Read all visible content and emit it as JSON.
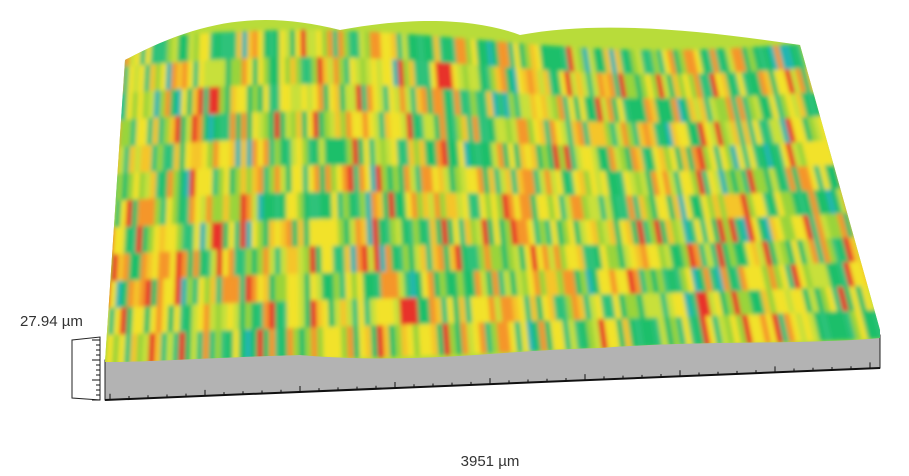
{
  "labels": {
    "height": "27.94 µm",
    "width": "3951 µm"
  }
}
